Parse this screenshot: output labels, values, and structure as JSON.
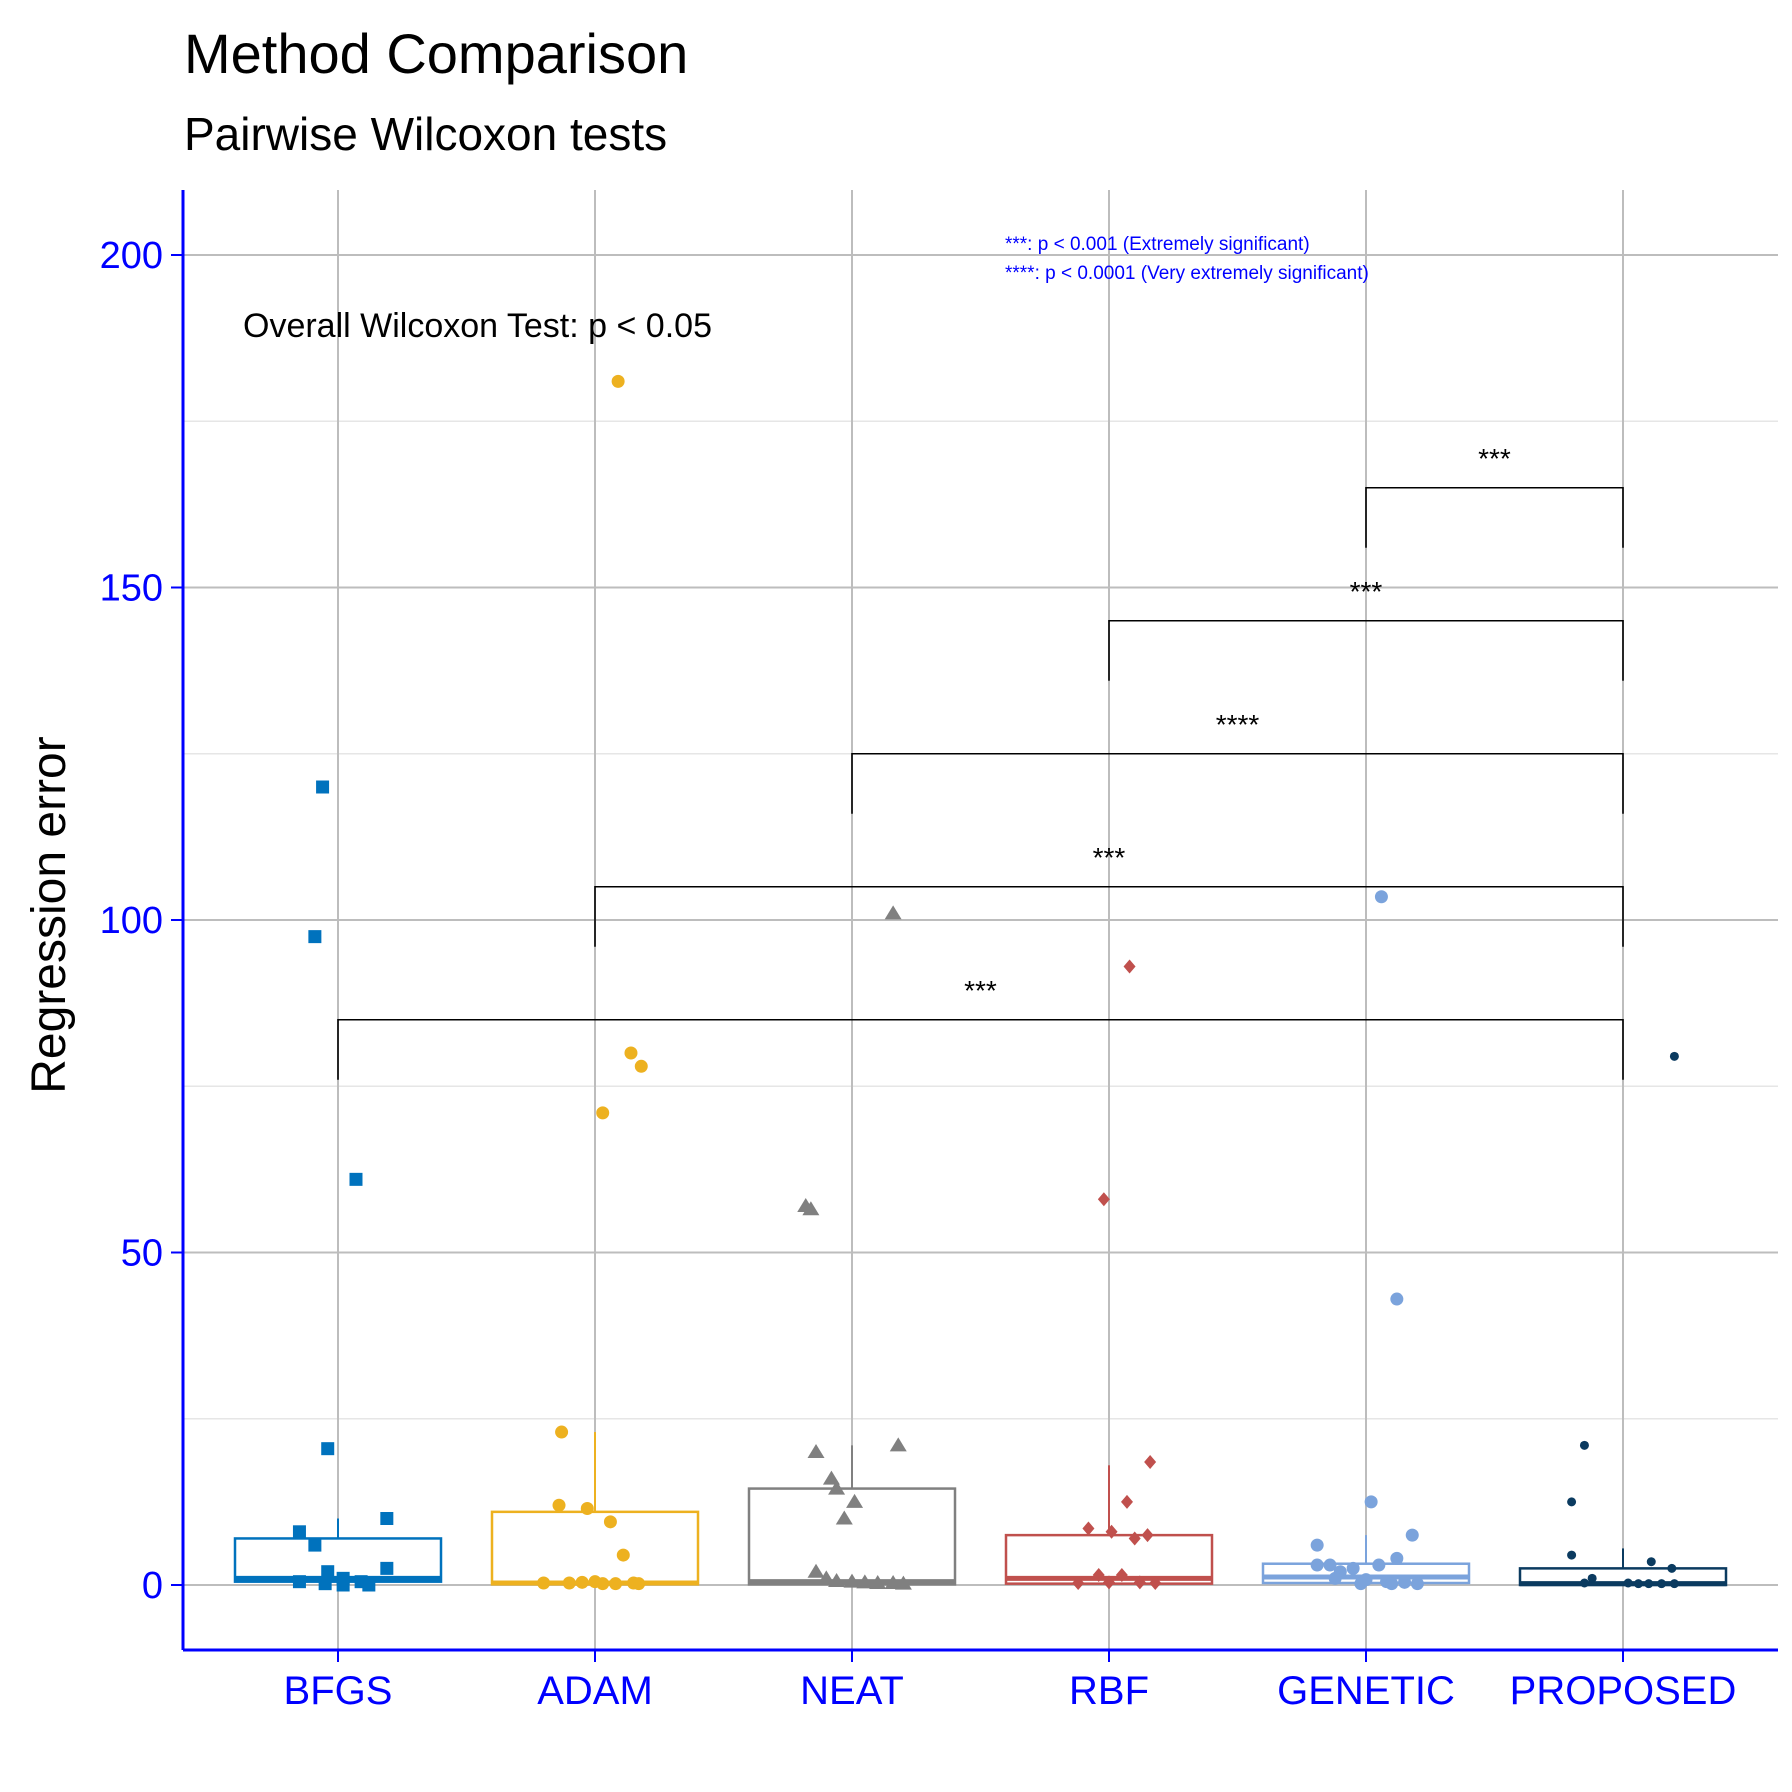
{
  "chart_data": {
    "type": "box",
    "title": "Method Comparison",
    "subtitle": "Pairwise Wilcoxon tests",
    "xlabel": "",
    "ylabel": "Regression error",
    "ylim": [
      -10,
      210
    ],
    "yticks": [
      0,
      50,
      100,
      150,
      200
    ],
    "grid": true,
    "categories": [
      "BFGS",
      "ADAM",
      "NEAT",
      "RBF",
      "GENETIC",
      "PROPOSED"
    ],
    "overall_test_label": "Overall Wilcoxon Test: p < 0.05",
    "legend_notes": [
      "***: p < 0.001 (Extremely significant)",
      "****: p < 0.0001 (Very extremely significant)"
    ],
    "series": [
      {
        "category": "BFGS",
        "color": "#0072BD",
        "marker": "square",
        "box": {
          "q1": 0.5,
          "median": 1.0,
          "q3": 7.0,
          "whisker_low": 0,
          "whisker_high": 10
        },
        "points": [
          [
            -0.06,
            120
          ],
          [
            -0.09,
            97.5
          ],
          [
            0.07,
            61
          ],
          [
            -0.04,
            20.5
          ],
          [
            0.19,
            10
          ],
          [
            -0.15,
            8
          ],
          [
            -0.09,
            6
          ],
          [
            0.19,
            2.5
          ],
          [
            -0.04,
            2
          ],
          [
            0.02,
            1
          ],
          [
            0.09,
            0.5
          ],
          [
            -0.15,
            0.5
          ],
          [
            -0.05,
            0.2
          ],
          [
            0.02,
            0
          ],
          [
            0.12,
            0
          ]
        ]
      },
      {
        "category": "ADAM",
        "color": "#EDB120",
        "marker": "circle",
        "box": {
          "q1": 0.1,
          "median": 0.3,
          "q3": 11.0,
          "whisker_low": 0,
          "whisker_high": 23
        },
        "points": [
          [
            0.09,
            181
          ],
          [
            0.14,
            80
          ],
          [
            0.18,
            78
          ],
          [
            0.03,
            71
          ],
          [
            -0.13,
            23
          ],
          [
            -0.14,
            12
          ],
          [
            -0.03,
            11.5
          ],
          [
            0.06,
            9.5
          ],
          [
            0.11,
            4.5
          ],
          [
            -0.2,
            0.3
          ],
          [
            -0.1,
            0.3
          ],
          [
            -0.05,
            0.4
          ],
          [
            0.0,
            0.5
          ],
          [
            0.03,
            0.2
          ],
          [
            0.08,
            0.2
          ],
          [
            0.15,
            0.3
          ],
          [
            0.17,
            0.2
          ]
        ]
      },
      {
        "category": "NEAT",
        "color": "#808080",
        "marker": "triangle",
        "box": {
          "q1": 0.1,
          "median": 0.5,
          "q3": 14.5,
          "whisker_low": 0,
          "whisker_high": 21
        },
        "points": [
          [
            0.16,
            101
          ],
          [
            -0.18,
            57
          ],
          [
            -0.16,
            56.5
          ],
          [
            0.18,
            21
          ],
          [
            -0.14,
            20
          ],
          [
            -0.08,
            16
          ],
          [
            -0.06,
            14.5
          ],
          [
            0.01,
            12.5
          ],
          [
            -0.03,
            10
          ],
          [
            -0.14,
            2
          ],
          [
            -0.1,
            1
          ],
          [
            -0.06,
            0.6
          ],
          [
            0.0,
            0.5
          ],
          [
            0.05,
            0.4
          ],
          [
            0.1,
            0.3
          ],
          [
            0.16,
            0.3
          ],
          [
            0.2,
            0.2
          ]
        ]
      },
      {
        "category": "RBF",
        "color": "#C0504D",
        "marker": "diamond",
        "box": {
          "q1": 0.2,
          "median": 1.0,
          "q3": 7.5,
          "whisker_low": 0,
          "whisker_high": 18
        },
        "points": [
          [
            0.08,
            93
          ],
          [
            -0.02,
            58
          ],
          [
            0.16,
            18.5
          ],
          [
            0.07,
            12.5
          ],
          [
            -0.08,
            8.5
          ],
          [
            0.01,
            8
          ],
          [
            0.15,
            7.5
          ],
          [
            0.1,
            7
          ],
          [
            -0.04,
            1.5
          ],
          [
            0.05,
            1.5
          ],
          [
            -0.12,
            0.3
          ],
          [
            0.0,
            0.4
          ],
          [
            0.12,
            0.4
          ],
          [
            0.18,
            0.3
          ]
        ]
      },
      {
        "category": "GENETIC",
        "color": "#7BA3DC",
        "marker": "circle",
        "box": {
          "q1": 0.3,
          "median": 1.2,
          "q3": 3.2,
          "whisker_low": 0,
          "whisker_high": 7.5
        },
        "points": [
          [
            0.06,
            103.5
          ],
          [
            0.12,
            43
          ],
          [
            0.02,
            12.5
          ],
          [
            0.18,
            7.5
          ],
          [
            -0.19,
            6
          ],
          [
            -0.19,
            3
          ],
          [
            -0.14,
            3
          ],
          [
            0.05,
            3
          ],
          [
            0.12,
            4
          ],
          [
            -0.1,
            2
          ],
          [
            -0.05,
            2.5
          ],
          [
            -0.12,
            1
          ],
          [
            0.0,
            0.8
          ],
          [
            0.08,
            0.5
          ],
          [
            0.15,
            0.4
          ],
          [
            -0.02,
            0.2
          ],
          [
            0.1,
            0.2
          ],
          [
            0.2,
            0.2
          ]
        ]
      },
      {
        "category": "PROPOSED",
        "color": "#0B3B60",
        "marker": "circle",
        "box": {
          "q1": 0.0,
          "median": 0.2,
          "q3": 2.5,
          "whisker_low": 0,
          "whisker_high": 5.5
        },
        "points": [
          [
            0.2,
            79.5
          ],
          [
            -0.15,
            21
          ],
          [
            -0.2,
            12.5
          ],
          [
            -0.2,
            4.5
          ],
          [
            0.11,
            3.5
          ],
          [
            0.19,
            2.5
          ],
          [
            -0.12,
            1
          ],
          [
            -0.15,
            0.3
          ],
          [
            0.02,
            0.3
          ],
          [
            0.06,
            0.2
          ],
          [
            0.1,
            0.2
          ],
          [
            0.15,
            0.2
          ],
          [
            0.2,
            0.2
          ]
        ]
      }
    ],
    "comparisons": [
      {
        "from": "GENETIC",
        "to": "PROPOSED",
        "y": 165,
        "label": "***"
      },
      {
        "from": "RBF",
        "to": "PROPOSED",
        "y": 145,
        "label": "***"
      },
      {
        "from": "NEAT",
        "to": "PROPOSED",
        "y": 125,
        "label": "****"
      },
      {
        "from": "ADAM",
        "to": "PROPOSED",
        "y": 105,
        "label": "***"
      },
      {
        "from": "BFGS",
        "to": "PROPOSED",
        "y": 85,
        "label": "***"
      }
    ]
  }
}
